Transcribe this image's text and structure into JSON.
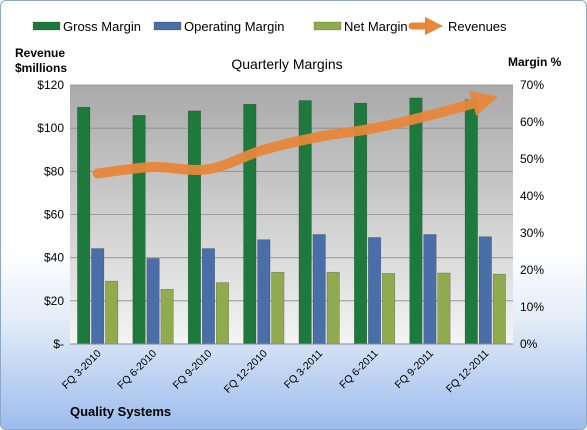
{
  "chart_data": {
    "type": "bar",
    "title": "Quarterly Margins",
    "footer": "Quality Systems",
    "categories": [
      "FQ 3-2010",
      "FQ 6-2010",
      "FQ 9-2010",
      "FQ 12-2010",
      "FQ 3-2011",
      "FQ 6-2011",
      "FQ 9-2011",
      "FQ 12-2011"
    ],
    "left_axis": {
      "label_line1": "Revenue",
      "label_line2": "$millions",
      "ylim": [
        0,
        120
      ],
      "ticks": [
        {
          "v": 0,
          "label": "$-"
        },
        {
          "v": 20,
          "label": "$20"
        },
        {
          "v": 40,
          "label": "$40"
        },
        {
          "v": 60,
          "label": "$60"
        },
        {
          "v": 80,
          "label": "$80"
        },
        {
          "v": 100,
          "label": "$100"
        },
        {
          "v": 120,
          "label": "$120"
        }
      ]
    },
    "right_axis": {
      "label": "Margin %",
      "ylim": [
        0,
        70
      ],
      "ticks": [
        {
          "v": 0,
          "label": "0%"
        },
        {
          "v": 10,
          "label": "10%"
        },
        {
          "v": 20,
          "label": "20%"
        },
        {
          "v": 30,
          "label": "30%"
        },
        {
          "v": 40,
          "label": "40%"
        },
        {
          "v": 50,
          "label": "50%"
        },
        {
          "v": 60,
          "label": "60%"
        },
        {
          "v": 70,
          "label": "70%"
        }
      ]
    },
    "series": [
      {
        "name": "Gross Margin",
        "axis": "right",
        "kind": "bar",
        "color": "#1e7a3c",
        "values": [
          64.0,
          61.8,
          63.0,
          64.8,
          65.8,
          65.1,
          66.5,
          66.0
        ]
      },
      {
        "name": "Operating Margin",
        "axis": "right",
        "kind": "bar",
        "color": "#4a6ea8",
        "values": [
          25.8,
          23.1,
          25.8,
          28.2,
          29.6,
          28.8,
          29.6,
          29.0
        ]
      },
      {
        "name": "Net Margin",
        "axis": "right",
        "kind": "bar",
        "color": "#8faa4f",
        "values": [
          17.0,
          14.8,
          16.6,
          19.4,
          19.4,
          19.1,
          19.2,
          18.9
        ]
      },
      {
        "name": "Revenues",
        "axis": "left",
        "kind": "line",
        "color": "#e8873a",
        "values": [
          79,
          82,
          81,
          90,
          96,
          100,
          106,
          113
        ]
      }
    ],
    "grid": true,
    "legend_position": "top"
  }
}
